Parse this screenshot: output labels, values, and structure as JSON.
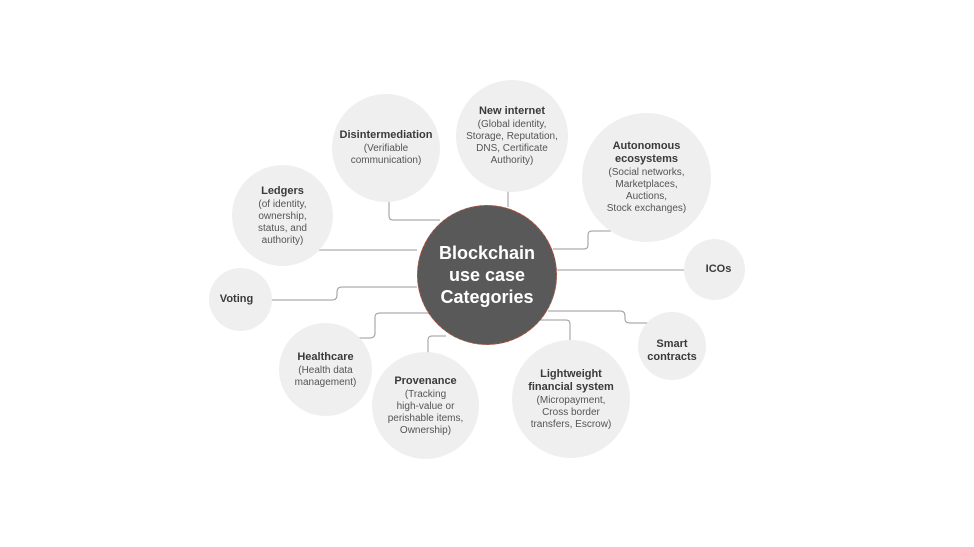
{
  "diagram": {
    "center": {
      "lines": [
        "Blockchain",
        "use case",
        "Categories"
      ]
    },
    "nodes": {
      "ledgers": {
        "title": "Ledgers",
        "desc": [
          "(of identity,",
          "ownership,",
          "status, and",
          "authority)"
        ]
      },
      "disintermediation": {
        "title": "Disintermediation",
        "desc": [
          "(Verifiable",
          "communication)"
        ]
      },
      "new_internet": {
        "title": "New internet",
        "desc": [
          "(Global identity,",
          "Storage, Reputation,",
          "DNS, Certificate",
          "Authority)"
        ]
      },
      "autonomous": {
        "title": [
          "Autonomous",
          "ecosystems"
        ],
        "desc": [
          "(Social networks,",
          "Marketplaces,",
          "Auctions,",
          "Stock exchanges)"
        ]
      },
      "icos": {
        "title": "ICOs"
      },
      "smart_contracts": {
        "title": [
          "Smart",
          "contracts"
        ]
      },
      "lightweight": {
        "title": [
          "Lightweight",
          "financial system"
        ],
        "desc": [
          "(Micropayment,",
          "Cross border",
          "transfers, Escrow)"
        ]
      },
      "provenance": {
        "title": "Provenance",
        "desc": [
          "(Tracking",
          "high-value or",
          "perishable items,",
          "Ownership)"
        ]
      },
      "healthcare": {
        "title": "Healthcare",
        "desc": [
          "(Health data",
          "management)"
        ]
      },
      "voting": {
        "title": "Voting"
      }
    },
    "colors": {
      "bubble": "#efefef",
      "center": "#595959",
      "center_border": "#c0503a",
      "connector": "#9a9a9a"
    }
  }
}
